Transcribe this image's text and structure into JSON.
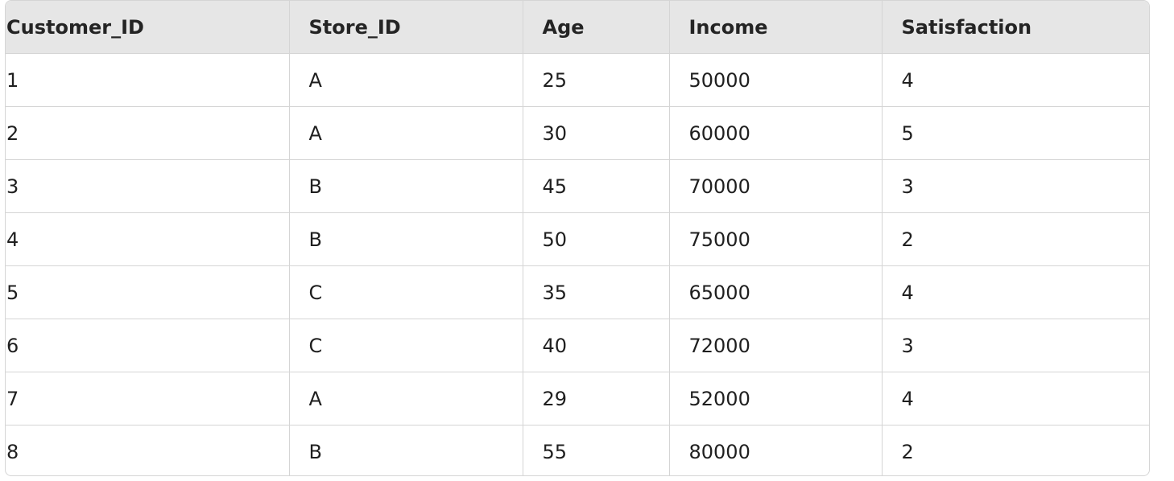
{
  "table": {
    "columns": [
      "Customer_ID",
      "Store_ID",
      "Age",
      "Income",
      "Satisfaction"
    ],
    "rows": [
      [
        "1",
        "A",
        "25",
        "50000",
        "4"
      ],
      [
        "2",
        "A",
        "30",
        "60000",
        "5"
      ],
      [
        "3",
        "B",
        "45",
        "70000",
        "3"
      ],
      [
        "4",
        "B",
        "50",
        "75000",
        "2"
      ],
      [
        "5",
        "C",
        "35",
        "65000",
        "4"
      ],
      [
        "6",
        "C",
        "40",
        "72000",
        "3"
      ],
      [
        "7",
        "A",
        "29",
        "52000",
        "4"
      ],
      [
        "8",
        "B",
        "55",
        "80000",
        "2"
      ]
    ]
  },
  "colors": {
    "header_background": "#e6e6e6",
    "border": "#d5d5d5",
    "text": "#1f1f1f"
  }
}
